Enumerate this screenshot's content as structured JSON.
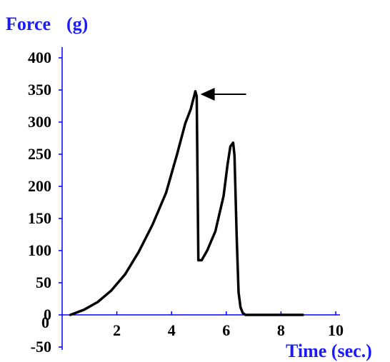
{
  "chart_data": {
    "type": "line",
    "title": "",
    "ylabel_parts": [
      "Force",
      "(g)"
    ],
    "xlabel": "Time (sec.)",
    "xlim": [
      0,
      10
    ],
    "ylim": [
      -50,
      400
    ],
    "x_ticks": [
      {
        "value": 0,
        "label": "0"
      },
      {
        "value": 2,
        "label": "2"
      },
      {
        "value": 4,
        "label": "4"
      },
      {
        "value": 6,
        "label": "6"
      },
      {
        "value": 8,
        "label": "8"
      },
      {
        "value": 10,
        "label": "10"
      }
    ],
    "y_ticks": [
      {
        "value": 400,
        "label": "400"
      },
      {
        "value": 350,
        "label": "350"
      },
      {
        "value": 300,
        "label": "300"
      },
      {
        "value": 250,
        "label": "250"
      },
      {
        "value": 200,
        "label": "200"
      },
      {
        "value": 150,
        "label": "150"
      },
      {
        "value": 100,
        "label": "100"
      },
      {
        "value": 50,
        "label": "50"
      },
      {
        "value": 0,
        "label": "0"
      },
      {
        "value": -50,
        "label": "-50"
      }
    ],
    "grid": false,
    "legend": "none",
    "series": [
      {
        "x": [
          0.3,
          0.8,
          1.3,
          1.8,
          2.3,
          2.8,
          3.3,
          3.8,
          4.2,
          4.5,
          4.7,
          4.87,
          4.92,
          4.98,
          5.1,
          5.3,
          5.6,
          5.9,
          6.05,
          6.15,
          6.25,
          6.3,
          6.38,
          6.45,
          6.52,
          6.6,
          6.7,
          6.9,
          7.5,
          8.8
        ],
        "y": [
          0,
          8,
          20,
          38,
          63,
          98,
          140,
          190,
          250,
          298,
          320,
          348,
          340,
          85,
          85,
          100,
          130,
          185,
          235,
          262,
          268,
          248,
          120,
          35,
          12,
          3,
          0,
          0,
          0,
          0
        ]
      }
    ],
    "annotations": [
      {
        "type": "arrow",
        "x": 4.95,
        "y": 350,
        "points_to": "peak"
      }
    ],
    "colors": {
      "axis": "#0000ff",
      "line": "#000000",
      "label": "#1a1aff",
      "tick_text": "#000000"
    }
  }
}
